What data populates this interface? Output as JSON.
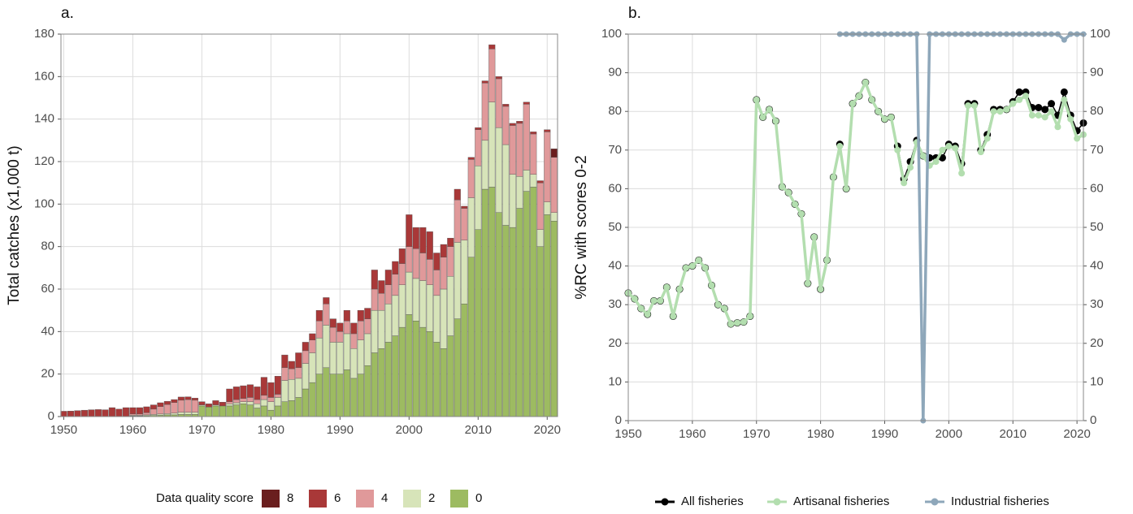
{
  "chart_data": [
    {
      "type": "stacked_bar",
      "panel_label": "a.",
      "ylabel": "Total catches (x1,000 t)",
      "legend_title": "Data quality score",
      "x": [
        1950,
        1951,
        1952,
        1953,
        1954,
        1955,
        1956,
        1957,
        1958,
        1959,
        1960,
        1961,
        1962,
        1963,
        1964,
        1965,
        1966,
        1967,
        1968,
        1969,
        1970,
        1971,
        1972,
        1973,
        1974,
        1975,
        1976,
        1977,
        1978,
        1979,
        1980,
        1981,
        1982,
        1983,
        1984,
        1985,
        1986,
        1987,
        1988,
        1989,
        1990,
        1991,
        1992,
        1993,
        1994,
        1995,
        1996,
        1997,
        1998,
        1999,
        2000,
        2001,
        2002,
        2003,
        2004,
        2005,
        2006,
        2007,
        2008,
        2009,
        2010,
        2011,
        2012,
        2013,
        2014,
        2015,
        2016,
        2017,
        2018,
        2019,
        2020,
        2021
      ],
      "xlim": [
        1949.6,
        2021.5
      ],
      "xticks": [
        1950,
        1960,
        1970,
        1980,
        1990,
        2000,
        2010,
        2020
      ],
      "ylim": [
        0,
        180
      ],
      "yticks": [
        0,
        20,
        40,
        60,
        80,
        100,
        120,
        140,
        160,
        180
      ],
      "grid": true,
      "series": [
        {
          "name": "0",
          "color": "#9dbb61",
          "values": [
            0,
            0,
            0,
            0,
            0,
            0,
            0,
            0,
            0,
            0,
            0.3,
            0.3,
            0.4,
            0.5,
            0.6,
            0.8,
            0.8,
            1,
            1,
            1,
            5,
            4.5,
            5,
            5,
            5,
            5.5,
            6,
            5.5,
            4,
            5,
            3,
            5,
            7,
            7.5,
            9,
            13,
            16,
            20,
            23,
            20,
            20,
            22,
            18,
            20,
            24,
            30,
            32,
            35,
            38,
            42,
            48,
            45,
            42,
            40,
            35,
            32,
            38,
            46,
            53,
            75,
            88,
            107,
            108,
            96,
            90,
            89,
            98,
            106,
            108,
            80,
            95,
            92
          ]
        },
        {
          "name": "2",
          "color": "#d7e4b9",
          "values": [
            0,
            0,
            0,
            0,
            0,
            0,
            0,
            0,
            0,
            0,
            0.3,
            0.3,
            0.4,
            0.5,
            0.6,
            0.6,
            0.8,
            1,
            1,
            1,
            0.5,
            0,
            0.5,
            0,
            1,
            1,
            1,
            1.5,
            2,
            3,
            4,
            4,
            10,
            10,
            9,
            12,
            14,
            17,
            20,
            15,
            15,
            17,
            14,
            16,
            15,
            20,
            18,
            18,
            19,
            20,
            20,
            20,
            22,
            22,
            22,
            28,
            28,
            36,
            30,
            28,
            30,
            23,
            40,
            40,
            38,
            25,
            15,
            10,
            6,
            8,
            6,
            4
          ]
        },
        {
          "name": "4",
          "color": "#e0999a",
          "values": [
            0,
            0,
            0,
            0,
            0,
            0,
            0,
            0,
            0,
            0,
            0.6,
            0.6,
            1,
            2.5,
            3.5,
            4.3,
            5,
            5.7,
            6,
            5.7,
            0,
            0,
            0,
            0,
            1,
            1.5,
            1.5,
            2,
            2,
            2,
            2,
            1.5,
            6,
            5,
            5,
            6,
            6,
            8,
            10,
            7,
            5,
            6,
            7,
            9,
            7,
            10,
            8,
            9,
            10,
            10,
            12,
            14,
            13,
            12,
            12,
            15,
            14,
            20,
            15,
            18,
            17,
            27,
            25,
            23,
            18,
            23,
            25,
            31,
            19,
            22,
            33,
            26
          ]
        },
        {
          "name": "6",
          "color": "#a93838",
          "values": [
            2.5,
            2.6,
            2.8,
            3,
            3.2,
            3.3,
            3.2,
            4.2,
            3.5,
            4.2,
            3,
            3,
            2.8,
            2,
            1.8,
            1.5,
            1.4,
            1.5,
            1.3,
            1,
            1.5,
            1.5,
            2,
            1.8,
            6,
            6,
            6,
            6,
            6,
            8.5,
            7,
            8.5,
            6,
            3.5,
            7,
            4,
            3,
            5,
            3,
            4,
            4,
            5,
            5,
            5,
            5,
            9,
            6,
            7,
            6,
            7,
            15,
            10,
            12,
            13,
            8,
            6,
            4,
            5,
            1,
            1,
            1,
            1,
            2,
            1,
            1,
            1,
            1,
            1,
            1,
            1,
            1,
            0
          ]
        },
        {
          "name": "8",
          "color": "#6a1e1e",
          "values": [
            0,
            0,
            0,
            0,
            0,
            0,
            0,
            0,
            0,
            0,
            0,
            0,
            0,
            0,
            0,
            0,
            0,
            0,
            0,
            0,
            0,
            0,
            0,
            0,
            0,
            0,
            0,
            0,
            0,
            0,
            0,
            0,
            0,
            0,
            0,
            0,
            0,
            0,
            0,
            0,
            0,
            0,
            0,
            0,
            0,
            0,
            0,
            0,
            0,
            0,
            0,
            0,
            0,
            0,
            0,
            0,
            0,
            0,
            0,
            0,
            0,
            0,
            0,
            0,
            0,
            0,
            0,
            0,
            0,
            0,
            0,
            4
          ]
        }
      ]
    },
    {
      "type": "line",
      "panel_label": "b.",
      "ylabel": "%RC with scores 0-2",
      "x": [
        1950,
        1951,
        1952,
        1953,
        1954,
        1955,
        1956,
        1957,
        1958,
        1959,
        1960,
        1961,
        1962,
        1963,
        1964,
        1965,
        1966,
        1967,
        1968,
        1969,
        1970,
        1971,
        1972,
        1973,
        1974,
        1975,
        1976,
        1977,
        1978,
        1979,
        1980,
        1981,
        1982,
        1983,
        1984,
        1985,
        1986,
        1987,
        1988,
        1989,
        1990,
        1991,
        1992,
        1993,
        1994,
        1995,
        1996,
        1997,
        1998,
        1999,
        2000,
        2001,
        2002,
        2003,
        2004,
        2005,
        2006,
        2007,
        2008,
        2009,
        2010,
        2011,
        2012,
        2013,
        2014,
        2015,
        2016,
        2017,
        2018,
        2019,
        2020,
        2021
      ],
      "xlim": [
        1950,
        2021
      ],
      "xticks": [
        1950,
        1960,
        1970,
        1980,
        1990,
        2000,
        2010,
        2020
      ],
      "ylim": [
        0,
        100
      ],
      "yticks": [
        0,
        10,
        20,
        30,
        40,
        50,
        60,
        70,
        80,
        90,
        100
      ],
      "y2lim": [
        0,
        100
      ],
      "y2ticks": [
        0,
        10,
        20,
        30,
        40,
        50,
        60,
        70,
        80,
        90,
        100
      ],
      "grid": true,
      "series": [
        {
          "name": "All fisheries",
          "color": "#000000",
          "values": [
            33,
            31.5,
            29,
            27.5,
            31,
            31,
            34.5,
            27,
            34,
            39.5,
            40,
            41.5,
            39.5,
            35,
            30,
            29,
            25,
            25.3,
            25.5,
            27,
            83,
            78.5,
            80.5,
            77.5,
            60.5,
            59,
            56,
            53.5,
            35.5,
            47.5,
            34,
            41.5,
            63,
            71.5,
            60,
            82,
            84,
            87.5,
            83,
            80,
            78,
            78.5,
            71,
            62.5,
            67,
            72.5,
            68.5,
            68,
            68,
            68,
            71.5,
            71,
            66.5,
            82,
            82,
            70,
            74,
            80.5,
            80.5,
            80.5,
            82.5,
            85,
            85,
            81,
            81,
            80.5,
            82,
            79,
            85,
            79,
            75,
            77
          ]
        },
        {
          "name": "Artisanal fisheries",
          "color": "#b3deaf",
          "values": [
            33,
            31.5,
            29,
            27.5,
            31,
            31,
            34.5,
            27,
            34,
            39.5,
            40,
            41.5,
            39.5,
            35,
            30,
            29,
            25,
            25.3,
            25.5,
            27,
            83,
            78.5,
            80.5,
            77.5,
            60.5,
            59,
            56,
            53.5,
            35.5,
            47.5,
            34,
            41.5,
            63,
            71,
            60,
            82,
            84,
            87.5,
            83,
            80,
            78,
            78.5,
            70,
            61.5,
            65.5,
            72,
            68.5,
            66,
            67,
            70,
            71,
            70.5,
            64,
            81.5,
            81.5,
            69.5,
            73,
            80,
            80,
            80.5,
            82,
            83,
            84,
            79,
            79,
            78.5,
            80,
            76,
            83,
            78,
            73,
            74
          ]
        },
        {
          "name": "Industrial fisheries",
          "color": "#8ea7ba",
          "values": [
            null,
            null,
            null,
            null,
            null,
            null,
            null,
            null,
            null,
            null,
            null,
            null,
            null,
            null,
            null,
            null,
            null,
            null,
            null,
            null,
            null,
            null,
            null,
            null,
            null,
            null,
            null,
            null,
            null,
            null,
            null,
            null,
            null,
            100,
            100,
            100,
            100,
            100,
            100,
            100,
            100,
            100,
            100,
            100,
            100,
            100,
            0,
            100,
            100,
            100,
            100,
            100,
            100,
            100,
            100,
            100,
            100,
            100,
            100,
            100,
            100,
            100,
            100,
            100,
            100,
            100,
            100,
            100,
            98.5,
            100,
            100,
            100
          ]
        }
      ]
    }
  ]
}
